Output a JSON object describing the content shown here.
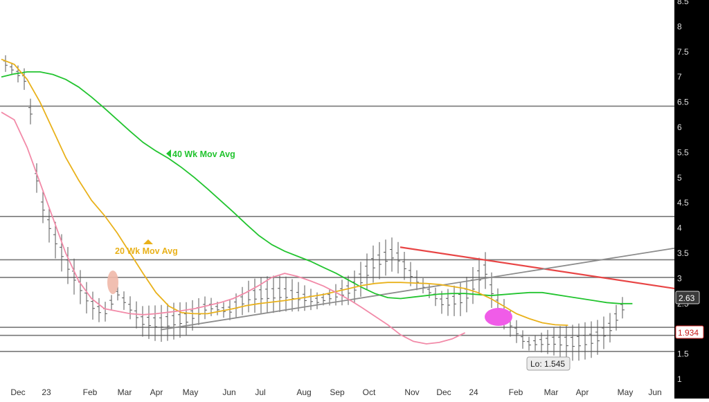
{
  "chart_data": {
    "type": "line",
    "title": "",
    "y_axis": {
      "min": 1,
      "max": 8.5,
      "side": "right",
      "ticks": [
        "1",
        "1.5",
        "2",
        "2.5",
        "3",
        "3.5",
        "4",
        "4.5",
        "5",
        "5.5",
        "6",
        "6.5",
        "7",
        "7.5",
        "8",
        "8.5"
      ]
    },
    "x_axis": {
      "labels": [
        "Dec",
        "23",
        "Feb",
        "Mar",
        "Apr",
        "May",
        "Jun",
        "Jul",
        "Aug",
        "Sep",
        "Oct",
        "Nov",
        "Dec",
        "24",
        "Feb",
        "Mar",
        "Apr",
        "May",
        "Jun"
      ]
    },
    "horizontal_levels": [
      6.42,
      4.23,
      3.37,
      3.02,
      2.03,
      1.87,
      1.55
    ],
    "trendlines": [
      {
        "color": "#e84545",
        "from": [
          "Nov 2023",
          3.62
        ],
        "to": [
          "Jun 2024",
          2.8
        ]
      },
      {
        "color": "#8c8c8c",
        "from": [
          "Apr 2023",
          1.98
        ],
        "to": [
          "Jun 2024",
          3.6
        ]
      }
    ],
    "series": [
      {
        "name": "40 Wk Mov Avg",
        "color": "#22c42f",
        "points": [
          [
            0,
            7.0
          ],
          [
            1,
            7.06
          ],
          [
            2,
            7.1
          ],
          [
            3,
            7.1
          ],
          [
            4,
            7.05
          ],
          [
            5,
            6.95
          ],
          [
            6,
            6.8
          ],
          [
            7,
            6.6
          ],
          [
            8,
            6.38
          ],
          [
            9,
            6.15
          ],
          [
            10,
            5.92
          ],
          [
            11,
            5.7
          ],
          [
            12,
            5.53
          ],
          [
            13,
            5.38
          ],
          [
            14,
            5.2
          ],
          [
            15,
            5.0
          ],
          [
            16,
            4.78
          ],
          [
            17,
            4.55
          ],
          [
            18,
            4.32
          ],
          [
            19,
            4.08
          ],
          [
            20,
            3.85
          ],
          [
            21,
            3.67
          ],
          [
            22,
            3.54
          ],
          [
            23,
            3.44
          ],
          [
            24,
            3.34
          ],
          [
            25,
            3.22
          ],
          [
            26,
            3.1
          ],
          [
            27,
            2.96
          ],
          [
            28,
            2.82
          ],
          [
            29,
            2.7
          ],
          [
            30,
            2.62
          ],
          [
            31,
            2.6
          ],
          [
            32,
            2.63
          ],
          [
            33,
            2.66
          ],
          [
            34,
            2.69
          ],
          [
            35,
            2.7
          ],
          [
            36,
            2.7
          ],
          [
            37,
            2.68
          ],
          [
            38,
            2.66
          ],
          [
            39,
            2.68
          ],
          [
            40,
            2.7
          ],
          [
            41,
            2.72
          ],
          [
            42,
            2.72
          ],
          [
            43,
            2.68
          ],
          [
            44,
            2.64
          ],
          [
            45,
            2.6
          ],
          [
            46,
            2.56
          ],
          [
            47,
            2.52
          ],
          [
            48,
            2.5
          ],
          [
            49,
            2.5
          ]
        ]
      },
      {
        "name": "20 Wk Mov Avg",
        "color": "#e9b11a",
        "points": [
          [
            0,
            7.35
          ],
          [
            1,
            7.25
          ],
          [
            2,
            6.95
          ],
          [
            3,
            6.5
          ],
          [
            4,
            5.95
          ],
          [
            5,
            5.4
          ],
          [
            6,
            4.95
          ],
          [
            7,
            4.55
          ],
          [
            8,
            4.25
          ],
          [
            9,
            3.9
          ],
          [
            10,
            3.5
          ],
          [
            11,
            3.1
          ],
          [
            12,
            2.72
          ],
          [
            13,
            2.45
          ],
          [
            14,
            2.32
          ],
          [
            15,
            2.3
          ],
          [
            16,
            2.3
          ],
          [
            17,
            2.35
          ],
          [
            18,
            2.4
          ],
          [
            19,
            2.46
          ],
          [
            20,
            2.5
          ],
          [
            21,
            2.53
          ],
          [
            22,
            2.56
          ],
          [
            23,
            2.6
          ],
          [
            24,
            2.64
          ],
          [
            25,
            2.68
          ],
          [
            26,
            2.74
          ],
          [
            27,
            2.8
          ],
          [
            28,
            2.86
          ],
          [
            29,
            2.9
          ],
          [
            30,
            2.92
          ],
          [
            31,
            2.92
          ],
          [
            32,
            2.91
          ],
          [
            33,
            2.9
          ],
          [
            34,
            2.88
          ],
          [
            35,
            2.84
          ],
          [
            36,
            2.8
          ],
          [
            37,
            2.72
          ],
          [
            38,
            2.6
          ],
          [
            39,
            2.45
          ],
          [
            40,
            2.3
          ],
          [
            41,
            2.2
          ],
          [
            42,
            2.12
          ],
          [
            43,
            2.08
          ],
          [
            44,
            2.07
          ]
        ]
      },
      {
        "name": "",
        "color": "#f28aa8",
        "points": [
          [
            0,
            6.3
          ],
          [
            1,
            6.15
          ],
          [
            2,
            5.6
          ],
          [
            3,
            4.9
          ],
          [
            4,
            4.2
          ],
          [
            5,
            3.5
          ],
          [
            6,
            2.95
          ],
          [
            7,
            2.6
          ],
          [
            8,
            2.4
          ],
          [
            9,
            2.35
          ],
          [
            10,
            2.3
          ],
          [
            11,
            2.28
          ],
          [
            12,
            2.3
          ],
          [
            13,
            2.33
          ],
          [
            14,
            2.36
          ],
          [
            15,
            2.4
          ],
          [
            16,
            2.46
          ],
          [
            17,
            2.52
          ],
          [
            18,
            2.6
          ],
          [
            19,
            2.72
          ],
          [
            20,
            2.86
          ],
          [
            21,
            3.02
          ],
          [
            22,
            3.1
          ],
          [
            23,
            3.04
          ],
          [
            24,
            2.95
          ],
          [
            25,
            2.85
          ],
          [
            26,
            2.72
          ],
          [
            27,
            2.58
          ],
          [
            28,
            2.42
          ],
          [
            29,
            2.25
          ],
          [
            30,
            2.08
          ],
          [
            31,
            1.88
          ],
          [
            32,
            1.75
          ],
          [
            33,
            1.7
          ],
          [
            34,
            1.73
          ],
          [
            35,
            1.8
          ],
          [
            36,
            1.92
          ]
        ]
      }
    ],
    "labels": {
      "ma40": "40 Wk Mov Avg",
      "ma20": "20 Wk Mov Avg",
      "last_price": "2.63",
      "marker_price": "1.934",
      "low_callout": "Lo: 1.545"
    },
    "highlights": [
      {
        "color": "#f0b8a8",
        "shape": "ellipse"
      },
      {
        "color": "#f05ce8",
        "shape": "ellipse"
      }
    ]
  }
}
